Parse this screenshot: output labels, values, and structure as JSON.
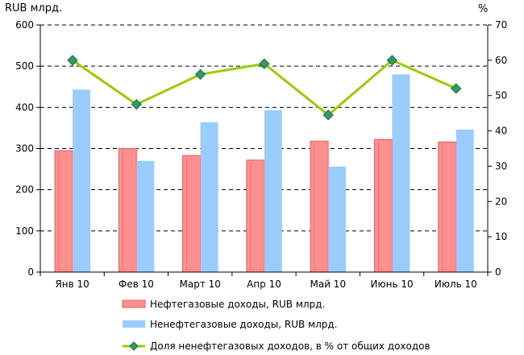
{
  "chart_data": {
    "type": "bar",
    "categories": [
      "Янв 10",
      "Фев 10",
      "Март 10",
      "Апр 10",
      "Май 10",
      "Июнь 10",
      "Июль 10"
    ],
    "series": [
      {
        "name": "Нефтегазовые доходы, RUB млрд.",
        "type": "bar",
        "axis": "left",
        "color": "#ff8f8f",
        "values": [
          295,
          300,
          283,
          272,
          318,
          322,
          316
        ]
      },
      {
        "name": "Ненефтегазовые доходы, RUB млрд.",
        "type": "bar",
        "axis": "left",
        "color": "#99ccff",
        "values": [
          443,
          270,
          364,
          393,
          256,
          480,
          346
        ]
      },
      {
        "name": "Доля ненефтегазовых доходов, в % от общих  доходов",
        "type": "line",
        "axis": "right",
        "color": "#99cc00",
        "marker_color": "#339966",
        "values": [
          60,
          47.5,
          56,
          59,
          44.5,
          60,
          52
        ]
      }
    ],
    "ylabel_left": "RUB млрд.",
    "ylabel_right": "%",
    "ylim_left": [
      0,
      600
    ],
    "ylim_right": [
      0,
      70
    ],
    "yticks_left": [
      "0",
      "100",
      "200",
      "300",
      "400",
      "500",
      "600"
    ],
    "yticks_right": [
      "0",
      "10",
      "20",
      "30",
      "40",
      "50",
      "60",
      "70"
    ],
    "grid": "horizontal dashed",
    "legend_position": "bottom"
  }
}
